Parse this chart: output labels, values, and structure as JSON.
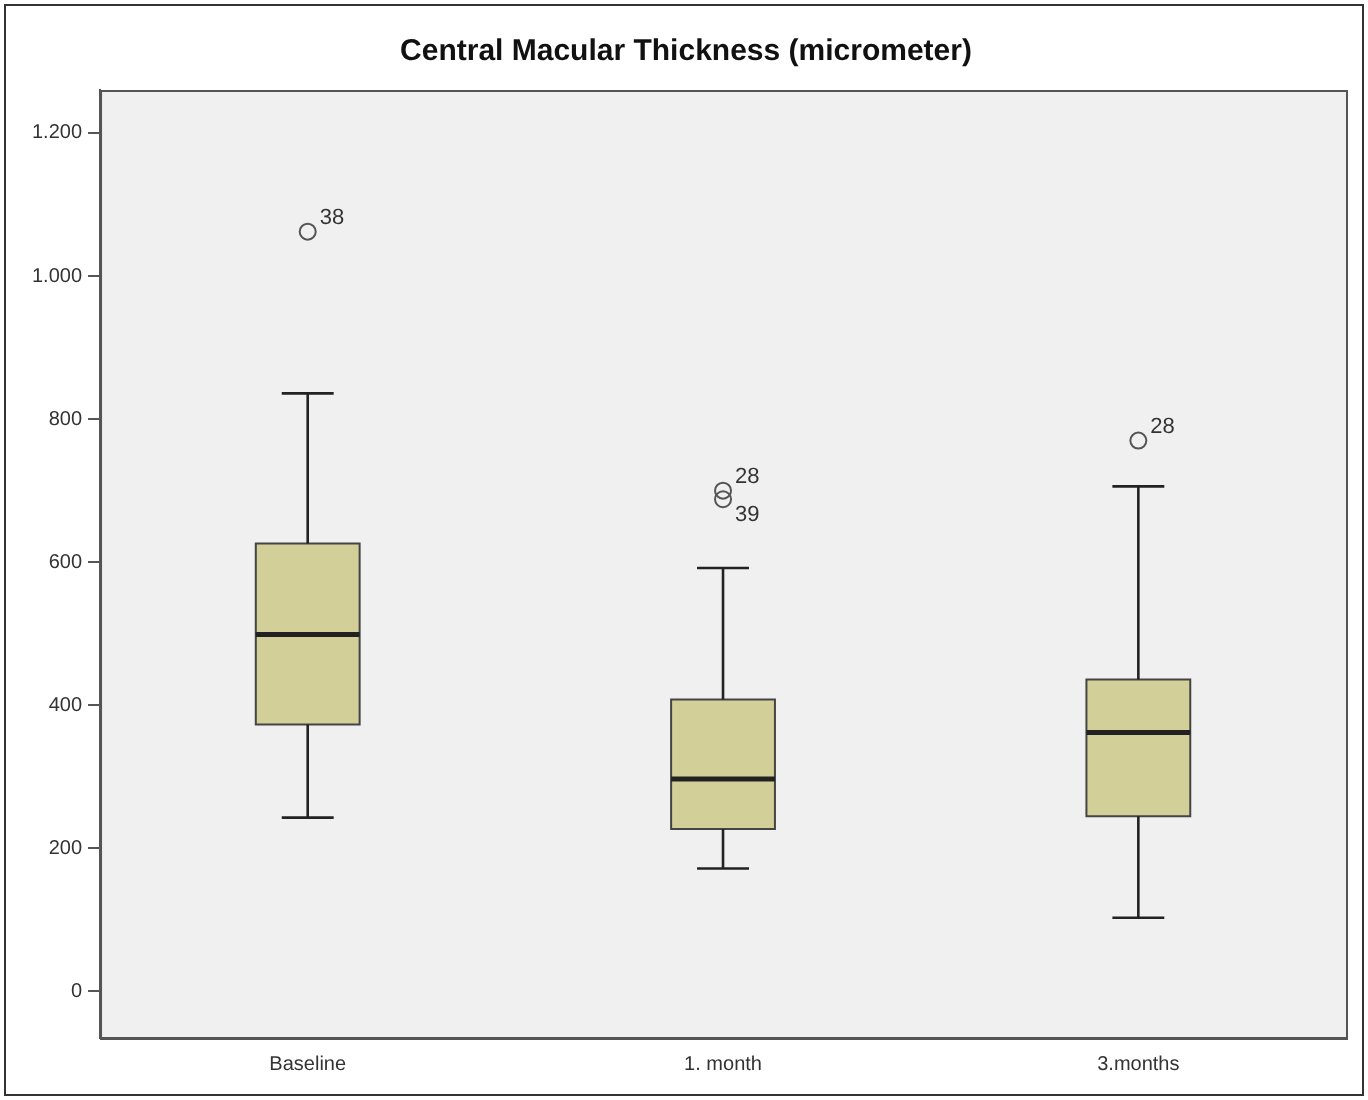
{
  "chart_data": {
    "type": "box",
    "title": "Central Macular Thickness (micrometer)",
    "categories": [
      "Baseline",
      "1. month",
      "3.months"
    ],
    "boxes": [
      {
        "low": 243,
        "q1": 373,
        "median": 499,
        "q3": 626,
        "high": 836,
        "outliers": [
          1062
        ]
      },
      {
        "low": 172,
        "q1": 227,
        "median": 297,
        "q3": 408,
        "high": 592,
        "outliers": [
          700,
          688
        ]
      },
      {
        "low": 103,
        "q1": 245,
        "median": 362,
        "q3": 436,
        "high": 706,
        "outliers": [
          770
        ]
      }
    ],
    "color": "#d3cf98",
    "ylim": [
      -65,
      1260
    ],
    "yticks": [
      0,
      200,
      400,
      600,
      800,
      {
        "value": 1000,
        "label": "1.000"
      },
      {
        "value": 1200,
        "label": "1.200"
      }
    ],
    "annotations": [
      "38",
      "28",
      "39",
      "28"
    ],
    "grid": false,
    "legend": false
  }
}
